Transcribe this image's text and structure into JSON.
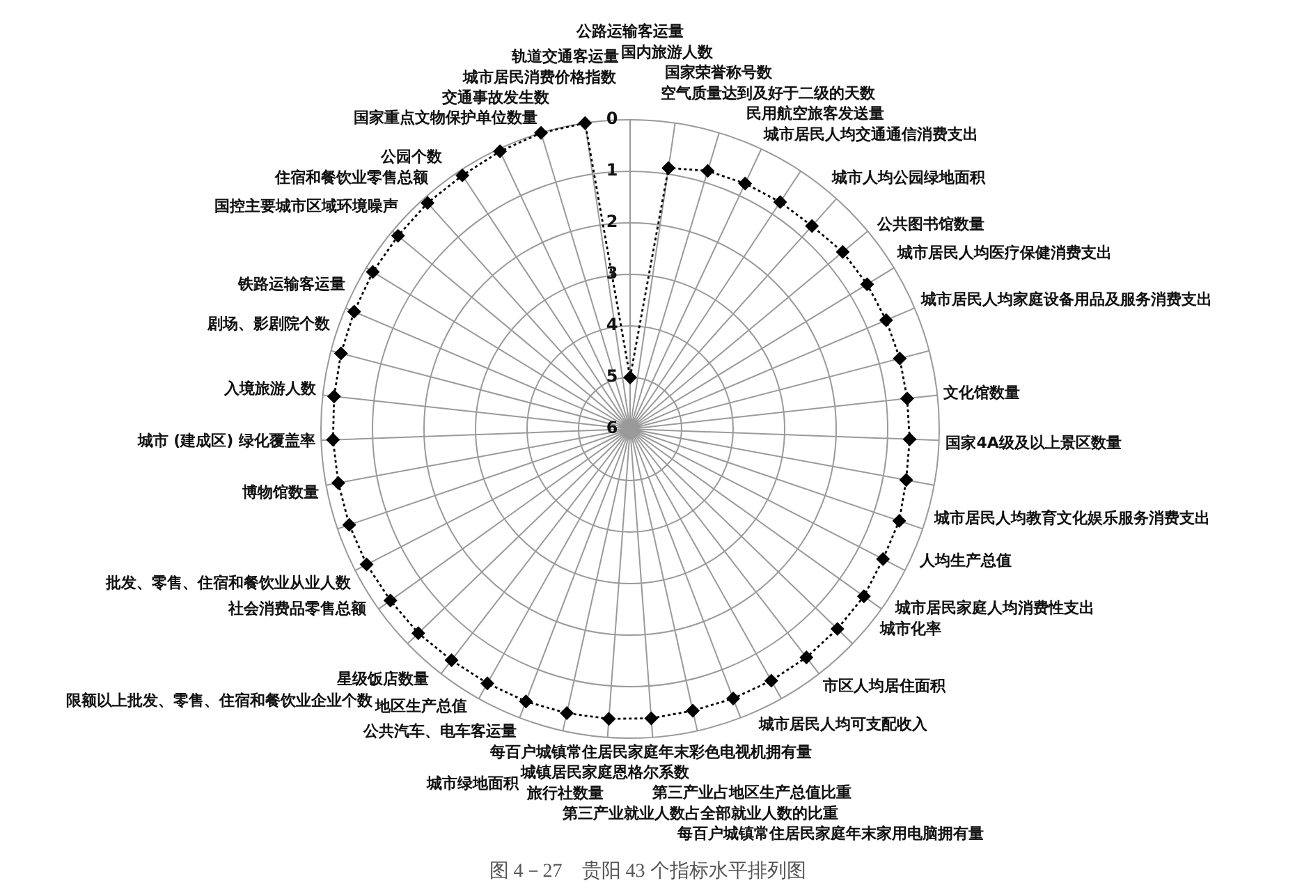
{
  "chart_data": {
    "type": "radar",
    "title": "图 4－27　贵阳 43 个指标水平排列图",
    "categories": [
      "公路运输客运量",
      "国内旅游人数",
      "国家荣誉称号数",
      "空气质量达到及好于二级的天数",
      "民用航空旅客发送量",
      "城市居民人均交通通信消费支出",
      "城市人均公园绿地面积",
      "公共图书馆数量",
      "城市居民人均医疗保健消费支出",
      "城市居民人均家庭设备用品及服务消费支出",
      "文化馆数量",
      "国家4A级及以上景区数量",
      "城市居民人均教育文化娱乐服务消费支出",
      "人均生产总值",
      "城市居民家庭人均消费性支出",
      "城市化率",
      "市区人均居住面积",
      "城市居民人均可支配收入",
      "每百户城镇常住居民家庭年末家用电脑拥有量",
      "第三产业占地区生产总值比重",
      "第三产业就业人数占全部就业人数的比重",
      "每百户城镇常住居民家庭年末彩色电视机拥有量",
      "城镇居民家庭恩格尔系数",
      "旅行社数量",
      "城市绿地面积",
      "公共汽车、电车客运量",
      "地区生产总值",
      "星级饭店数量",
      "限额以上批发、零售、住宿和餐饮业企业个数",
      "社会消费品零售总额",
      "批发、零售、住宿和餐饮业从业人数",
      "博物馆数量",
      "城市 (建成区) 绿化覆盖率",
      "入境旅游人数",
      "剧场、影剧院个数",
      "铁路运输客运量",
      "国控主要城市区域环境噪声",
      "住宿和餐饮业零售总额",
      "公园个数",
      "国家重点文物保护单位数量",
      "交通事故发生数",
      "城市居民消费价格指数",
      "轨道交通客运量"
    ],
    "series": [
      {
        "color": "#000000",
        "values": [
          5,
          0.88,
          0.77,
          0.74,
          0.72,
          0.71,
          0.63,
          0.61,
          0.6,
          0.59,
          0.59,
          0.57,
          0.55,
          0.48,
          0.48,
          0.42,
          0.41,
          0.4,
          0.4,
          0.4,
          0.4,
          0.37,
          0.36,
          0.35,
          0.34,
          0.34,
          0.33,
          0.29,
          0.28,
          0.25,
          0.24,
          0.24,
          0.23,
          0.22,
          0.2,
          0.18,
          0.15,
          0.14,
          0.11,
          0.1,
          0.05,
          0,
          0
        ]
      }
    ],
    "ylim": [
      6,
      0
    ],
    "yticks": [
      0,
      1,
      2,
      3,
      4,
      5,
      6
    ],
    "grid": true,
    "marker": "diamond",
    "line_style": "dotted"
  }
}
